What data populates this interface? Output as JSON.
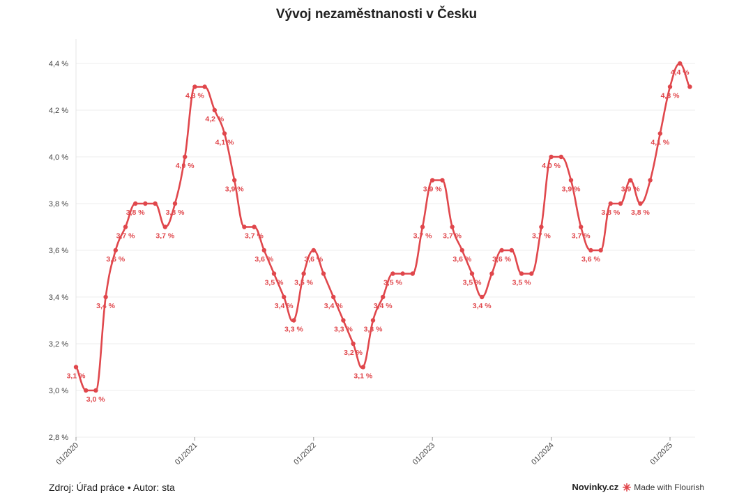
{
  "chart_data": {
    "type": "line",
    "title": "Vývoj nezaměstnanosti v Česku",
    "xlabel": "",
    "ylabel": "",
    "ylim": [
      2.8,
      4.4
    ],
    "y_ticks": [
      "2,8 %",
      "3,0 %",
      "3,2 %",
      "3,4 %",
      "3,6 %",
      "3,8 %",
      "4,0 %",
      "4,2 %",
      "4,4 %"
    ],
    "x_ticks": [
      "01/2020",
      "01/2021",
      "01/2022",
      "01/2023",
      "01/2024",
      "01/2025"
    ],
    "grid": true,
    "color": "#e0474c",
    "series": [
      {
        "values": [
          3.1,
          3.0,
          3.0,
          3.4,
          3.6,
          3.7,
          3.8,
          3.8,
          3.8,
          3.7,
          3.8,
          4.0,
          4.3,
          4.3,
          4.2,
          4.1,
          3.9,
          3.7,
          3.7,
          3.6,
          3.5,
          3.4,
          3.3,
          3.5,
          3.6,
          3.5,
          3.4,
          3.3,
          3.2,
          3.1,
          3.3,
          3.4,
          3.5,
          3.5,
          3.5,
          3.7,
          3.9,
          3.9,
          3.7,
          3.6,
          3.5,
          3.4,
          3.5,
          3.6,
          3.6,
          3.5,
          3.5,
          3.7,
          4.0,
          4.0,
          3.9,
          3.7,
          3.6,
          3.6,
          3.8,
          3.8,
          3.9,
          3.8,
          3.9,
          4.1,
          4.3,
          4.4,
          4.3
        ]
      }
    ],
    "data_labels": [
      {
        "i": 0,
        "text": "3,1 %",
        "pos": "below"
      },
      {
        "i": 1,
        "text": "3,0 %",
        "pos": "below-right"
      },
      {
        "i": 3,
        "text": "3,4 %",
        "pos": "below"
      },
      {
        "i": 4,
        "text": "3,6 %",
        "pos": "below"
      },
      {
        "i": 5,
        "text": "3,7 %",
        "pos": "below"
      },
      {
        "i": 6,
        "text": "3,8 %",
        "pos": "below"
      },
      {
        "i": 9,
        "text": "3,7 %",
        "pos": "below"
      },
      {
        "i": 10,
        "text": "3,8 %",
        "pos": "below"
      },
      {
        "i": 11,
        "text": "4,0 %",
        "pos": "below"
      },
      {
        "i": 12,
        "text": "4,3 %",
        "pos": "below"
      },
      {
        "i": 14,
        "text": "4,2 %",
        "pos": "below"
      },
      {
        "i": 15,
        "text": "4,1 %",
        "pos": "below"
      },
      {
        "i": 16,
        "text": "3,9 %",
        "pos": "below"
      },
      {
        "i": 17,
        "text": "3,7 %",
        "pos": "below-right"
      },
      {
        "i": 19,
        "text": "3,6 %",
        "pos": "below"
      },
      {
        "i": 20,
        "text": "3,5 %",
        "pos": "below"
      },
      {
        "i": 21,
        "text": "3,4 %",
        "pos": "below"
      },
      {
        "i": 22,
        "text": "3,3 %",
        "pos": "below"
      },
      {
        "i": 23,
        "text": "3,5 %",
        "pos": "below"
      },
      {
        "i": 24,
        "text": "3,6 %",
        "pos": "below"
      },
      {
        "i": 26,
        "text": "3,4 %",
        "pos": "below"
      },
      {
        "i": 27,
        "text": "3,3 %",
        "pos": "below"
      },
      {
        "i": 28,
        "text": "3,2 %",
        "pos": "below"
      },
      {
        "i": 29,
        "text": "3,1 %",
        "pos": "below"
      },
      {
        "i": 30,
        "text": "3,3 %",
        "pos": "below"
      },
      {
        "i": 31,
        "text": "3,4 %",
        "pos": "below"
      },
      {
        "i": 32,
        "text": "3,5 %",
        "pos": "below"
      },
      {
        "i": 35,
        "text": "3,7 %",
        "pos": "below"
      },
      {
        "i": 36,
        "text": "3,9 %",
        "pos": "below"
      },
      {
        "i": 38,
        "text": "3,7 %",
        "pos": "below"
      },
      {
        "i": 39,
        "text": "3,6 %",
        "pos": "below"
      },
      {
        "i": 40,
        "text": "3,5 %",
        "pos": "below"
      },
      {
        "i": 41,
        "text": "3,4 %",
        "pos": "below"
      },
      {
        "i": 43,
        "text": "3,6 %",
        "pos": "below"
      },
      {
        "i": 45,
        "text": "3,5 %",
        "pos": "below"
      },
      {
        "i": 47,
        "text": "3,7 %",
        "pos": "below"
      },
      {
        "i": 48,
        "text": "4,0 %",
        "pos": "below"
      },
      {
        "i": 50,
        "text": "3,9 %",
        "pos": "below"
      },
      {
        "i": 51,
        "text": "3,7 %",
        "pos": "below"
      },
      {
        "i": 52,
        "text": "3,6 %",
        "pos": "below"
      },
      {
        "i": 54,
        "text": "3,8 %",
        "pos": "below"
      },
      {
        "i": 56,
        "text": "3,9 %",
        "pos": "below"
      },
      {
        "i": 57,
        "text": "3,8 %",
        "pos": "below"
      },
      {
        "i": 59,
        "text": "4,1 %",
        "pos": "below"
      },
      {
        "i": 60,
        "text": "4,3 %",
        "pos": "below"
      },
      {
        "i": 61,
        "text": "4,4 %",
        "pos": "below"
      }
    ]
  },
  "footer": {
    "source": "Zdroj: Úřad práce • Autor: sta",
    "brand": "Novinky.cz",
    "flourish": "Made with Flourish"
  }
}
